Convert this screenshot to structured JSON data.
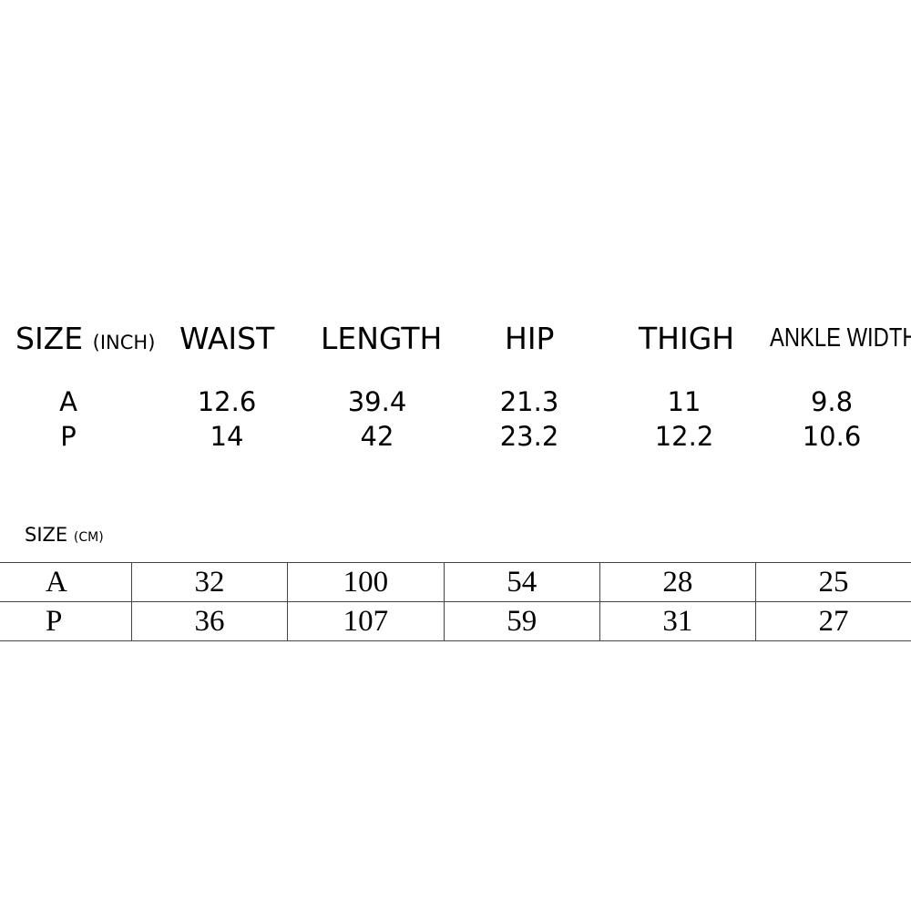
{
  "inch_table": {
    "size_label": "SIZE",
    "unit": "(INCH)",
    "headers": [
      "WAIST",
      "LENGTH",
      "HIP",
      "THIGH",
      "ANKLE WIDTH"
    ],
    "rows": [
      {
        "size": "A",
        "values": [
          "12.6",
          "39.4",
          "21.3",
          "11",
          "9.8"
        ]
      },
      {
        "size": "P",
        "values": [
          "14",
          "42",
          "23.2",
          "12.2",
          "10.6"
        ]
      }
    ]
  },
  "cm_table": {
    "size_label": "SIZE",
    "unit": "(CM)",
    "rows": [
      {
        "size": "A",
        "values": [
          "32",
          "100",
          "54",
          "28",
          "25"
        ]
      },
      {
        "size": "P",
        "values": [
          "36",
          "107",
          "59",
          "31",
          "27"
        ]
      }
    ]
  }
}
